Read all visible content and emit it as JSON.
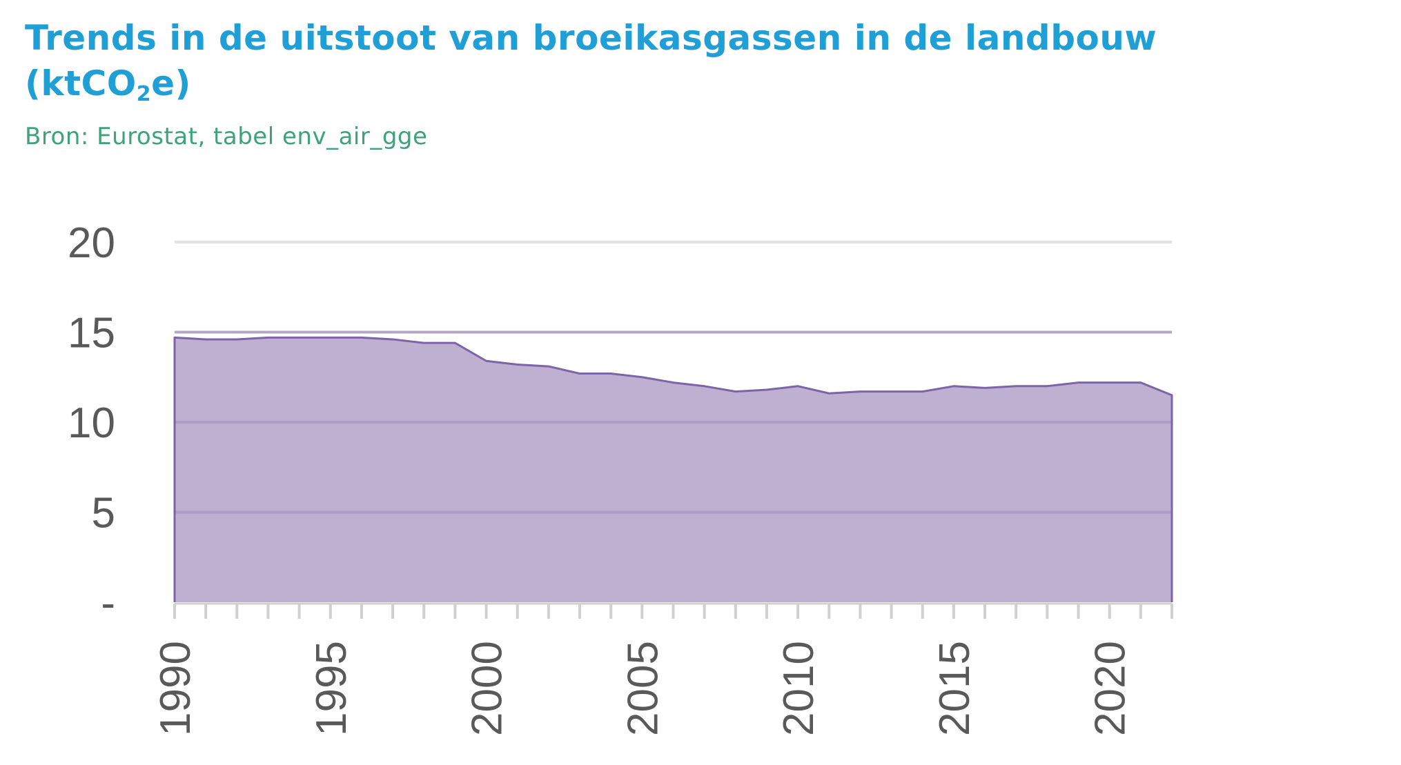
{
  "title": {
    "line1": "Trends in de uitstoot van broeikasgassen in de landbouw",
    "line2_prefix": "(ktCO",
    "line2_sub": "2",
    "line2_suffix": "e)"
  },
  "source": "Bron: Eurostat, tabel env_air_gge",
  "chart_data": {
    "type": "area",
    "x": [
      1990,
      1991,
      1992,
      1993,
      1994,
      1995,
      1996,
      1997,
      1998,
      1999,
      2000,
      2001,
      2002,
      2003,
      2004,
      2005,
      2006,
      2007,
      2008,
      2009,
      2010,
      2011,
      2012,
      2013,
      2014,
      2015,
      2016,
      2017,
      2018,
      2019,
      2020,
      2021,
      2022
    ],
    "series": [
      {
        "values": [
          14.7,
          14.6,
          14.6,
          14.7,
          14.7,
          14.7,
          14.7,
          14.6,
          14.4,
          14.4,
          13.4,
          13.2,
          13.1,
          12.7,
          12.7,
          12.5,
          12.2,
          12.0,
          11.7,
          11.8,
          12.0,
          11.6,
          11.7,
          11.7,
          11.7,
          12.0,
          11.9,
          12.0,
          12.0,
          12.2,
          12.2,
          12.2,
          11.5
        ]
      }
    ],
    "ylim": [
      0,
      20
    ],
    "yticks": [
      0,
      5,
      10,
      15,
      20
    ],
    "ytick_labels": [
      "-",
      "5",
      "10",
      "15",
      "20"
    ],
    "xtick_labels": [
      "1990",
      "1995",
      "2000",
      "2005",
      "2010",
      "2015",
      "2020"
    ],
    "xlabel": "",
    "ylabel": "",
    "grid": true,
    "legend": "none",
    "colors": {
      "fill": "#bfafd1",
      "line": "#7d63a8",
      "grid_light": "#e3e3e3",
      "grid_dark": "#a695bd",
      "tick": "#d0d0d0"
    }
  }
}
